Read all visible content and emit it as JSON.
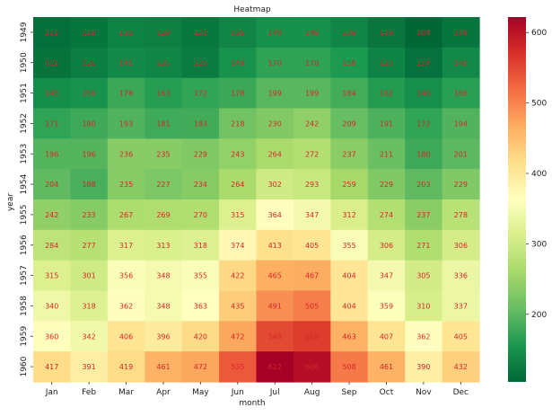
{
  "chart_data": {
    "type": "heatmap",
    "title": "Heatmap",
    "xlabel": "month",
    "ylabel": "year",
    "x": [
      "Jan",
      "Feb",
      "Mar",
      "Apr",
      "May",
      "Jun",
      "Jul",
      "Aug",
      "Sep",
      "Oct",
      "Nov",
      "Dec"
    ],
    "y": [
      "1949",
      "1950",
      "1951",
      "1952",
      "1953",
      "1954",
      "1955",
      "1956",
      "1957",
      "1958",
      "1959",
      "1960"
    ],
    "values": [
      [
        112,
        118,
        132,
        129,
        121,
        135,
        148,
        148,
        136,
        119,
        104,
        118
      ],
      [
        115,
        126,
        141,
        135,
        125,
        149,
        170,
        170,
        158,
        133,
        114,
        140
      ],
      [
        145,
        150,
        178,
        163,
        172,
        178,
        199,
        199,
        184,
        162,
        146,
        166
      ],
      [
        171,
        180,
        193,
        181,
        183,
        218,
        230,
        242,
        209,
        191,
        172,
        194
      ],
      [
        196,
        196,
        236,
        235,
        229,
        243,
        264,
        272,
        237,
        211,
        180,
        201
      ],
      [
        204,
        188,
        235,
        227,
        234,
        264,
        302,
        293,
        259,
        229,
        203,
        229
      ],
      [
        242,
        233,
        267,
        269,
        270,
        315,
        364,
        347,
        312,
        274,
        237,
        278
      ],
      [
        284,
        277,
        317,
        313,
        318,
        374,
        413,
        405,
        355,
        306,
        271,
        306
      ],
      [
        315,
        301,
        356,
        348,
        355,
        422,
        465,
        467,
        404,
        347,
        305,
        336
      ],
      [
        340,
        318,
        362,
        348,
        363,
        435,
        491,
        505,
        404,
        359,
        310,
        337
      ],
      [
        360,
        342,
        406,
        396,
        420,
        472,
        548,
        559,
        463,
        407,
        362,
        405
      ],
      [
        417,
        391,
        419,
        461,
        472,
        535,
        622,
        606,
        508,
        461,
        390,
        432
      ]
    ],
    "colormap": "RdYlGn_r",
    "colorbar": {
      "range": [
        104,
        622
      ],
      "ticks": [
        200,
        300,
        400,
        500,
        600
      ],
      "colors": [
        "#006837",
        "#1a9850",
        "#66bd63",
        "#a6d96a",
        "#d9ef8b",
        "#ffffbf",
        "#fee08b",
        "#fdae61",
        "#f46d43",
        "#d73027",
        "#a50026"
      ]
    },
    "annotation_color": "#d62728"
  }
}
